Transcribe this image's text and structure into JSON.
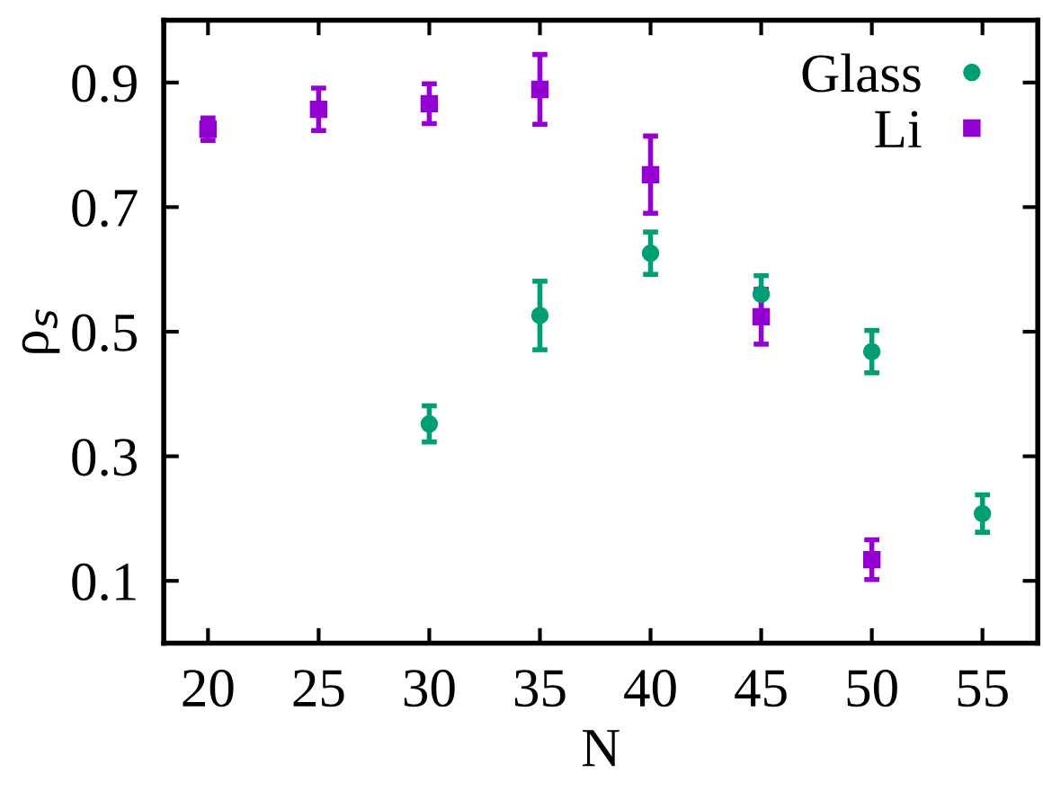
{
  "chart_data": {
    "type": "scatter",
    "xlabel": "N",
    "ylabel": "ρ$_{s}$",
    "xlim": [
      18,
      57.5
    ],
    "ylim": [
      0,
      1.0
    ],
    "xticks": [
      20,
      25,
      30,
      35,
      40,
      45,
      50,
      55
    ],
    "yticks": [
      0.1,
      0.3,
      0.5,
      0.7,
      0.9
    ],
    "legend": "top right",
    "grid": false,
    "series": [
      {
        "name": "Glass",
        "color": "#009e73",
        "marker": "circle",
        "x": [
          30,
          35,
          40,
          45,
          50,
          55
        ],
        "values": [
          0.352,
          0.526,
          0.626,
          0.56,
          0.468,
          0.208
        ],
        "errors": [
          0.029,
          0.055,
          0.034,
          0.03,
          0.034,
          0.03
        ]
      },
      {
        "name": "Li",
        "color": "#9400d3",
        "marker": "square",
        "x": [
          20,
          25,
          30,
          35,
          40,
          45,
          50
        ],
        "values": [
          0.825,
          0.857,
          0.866,
          0.889,
          0.752,
          0.524,
          0.134
        ],
        "errors": [
          0.018,
          0.034,
          0.032,
          0.056,
          0.062,
          0.044,
          0.032
        ]
      }
    ]
  }
}
